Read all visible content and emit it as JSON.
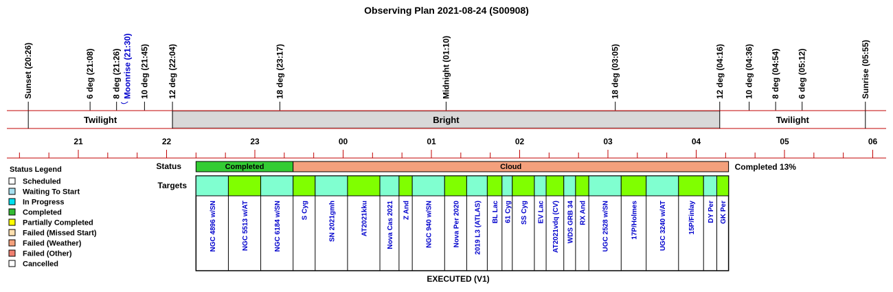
{
  "chart_data": {
    "type": "timeline",
    "title": "Observing Plan 2021-08-24 (S00908)",
    "events": [
      {
        "label": "Sunset (20:26)",
        "time": "20:26",
        "kind": "sun"
      },
      {
        "label": "6 deg (21:08)",
        "time": "21:08",
        "kind": "twilight"
      },
      {
        "label": "8 deg (21:26)",
        "time": "21:26",
        "kind": "twilight"
      },
      {
        "label": "Moonrise (21:30)",
        "time": "21:30",
        "kind": "moon"
      },
      {
        "label": "10 deg (21:45)",
        "time": "21:45",
        "kind": "twilight"
      },
      {
        "label": "12 deg (22:04)",
        "time": "22:04",
        "kind": "twilight"
      },
      {
        "label": "18 deg (23:17)",
        "time": "23:17",
        "kind": "twilight"
      },
      {
        "label": "Midnight (01:10)",
        "time": "25:10",
        "kind": "midnight"
      },
      {
        "label": "18 deg (03:05)",
        "time": "27:05",
        "kind": "twilight"
      },
      {
        "label": "12 deg (04:16)",
        "time": "28:16",
        "kind": "twilight"
      },
      {
        "label": "10 deg (04:36)",
        "time": "28:36",
        "kind": "twilight"
      },
      {
        "label": "8 deg (04:54)",
        "time": "28:54",
        "kind": "twilight"
      },
      {
        "label": "6 deg (05:12)",
        "time": "29:12",
        "kind": "twilight"
      },
      {
        "label": "Sunrise (05:55)",
        "time": "29:55",
        "kind": "sun"
      }
    ],
    "bands": [
      {
        "label": "Twilight",
        "start": "20:26",
        "end": "22:04",
        "color": "#ffffff"
      },
      {
        "label": "Bright",
        "start": "22:04",
        "end": "28:16",
        "color": "#d8d8d8"
      },
      {
        "label": "Twilight",
        "start": "28:16",
        "end": "29:55",
        "color": "#ffffff"
      }
    ],
    "hour_ticks": [
      "21",
      "22",
      "23",
      "00",
      "01",
      "02",
      "03",
      "04",
      "05",
      "06"
    ],
    "row_labels": {
      "status": "Status",
      "targets": "Targets"
    },
    "status": [
      {
        "label": "Completed",
        "start": "22:20",
        "end": "23:26",
        "color": "#33cc33"
      },
      {
        "label": "Cloud",
        "start": "23:26",
        "end": "28:22",
        "color": "#f4a07c"
      }
    ],
    "completion": "Completed 13%",
    "targets": [
      {
        "name": "NGC 4896 w/SN",
        "start": "22:20",
        "end": "22:42",
        "color": "#80ffd0"
      },
      {
        "name": "NGC 5513 w/AT",
        "start": "22:42",
        "end": "23:04",
        "color": "#80ff00"
      },
      {
        "name": "NGC 6184 w/SN",
        "start": "23:04",
        "end": "23:26",
        "color": "#80ffd0"
      },
      {
        "name": "S Cyg",
        "start": "23:26",
        "end": "23:41",
        "color": "#80ff00"
      },
      {
        "name": "SN 2021gmh",
        "start": "23:41",
        "end": "24:03",
        "color": "#80ffd0"
      },
      {
        "name": "AT2021kku",
        "start": "24:03",
        "end": "24:25",
        "color": "#80ff00"
      },
      {
        "name": "Nova Cas 2021",
        "start": "24:25",
        "end": "24:38",
        "color": "#80ffd0"
      },
      {
        "name": "Z And",
        "start": "24:38",
        "end": "24:47",
        "color": "#80ff00"
      },
      {
        "name": "NGC 940 w/SN",
        "start": "24:47",
        "end": "25:09",
        "color": "#80ffd0"
      },
      {
        "name": "Nova Per 2020",
        "start": "25:09",
        "end": "25:24",
        "color": "#80ff00"
      },
      {
        "name": "2019 L3 (ATLAS)",
        "start": "25:24",
        "end": "25:38",
        "color": "#80ffd0"
      },
      {
        "name": "BL Lac",
        "start": "25:38",
        "end": "25:48",
        "color": "#80ff00"
      },
      {
        "name": "61 Cyg",
        "start": "25:48",
        "end": "25:55",
        "color": "#80ffd0"
      },
      {
        "name": "SS Cyg",
        "start": "25:55",
        "end": "26:10",
        "color": "#80ff00"
      },
      {
        "name": "EV Lac",
        "start": "26:10",
        "end": "26:18",
        "color": "#80ffd0"
      },
      {
        "name": "AT2021vdq (CV)",
        "start": "26:18",
        "end": "26:30",
        "color": "#80ff00"
      },
      {
        "name": "WDS GRB 34",
        "start": "26:30",
        "end": "26:38",
        "color": "#80ffd0"
      },
      {
        "name": "RX And",
        "start": "26:38",
        "end": "26:47",
        "color": "#80ff00"
      },
      {
        "name": "UGC 2528 w/SN",
        "start": "26:47",
        "end": "27:09",
        "color": "#80ffd0"
      },
      {
        "name": "17P/Holmes",
        "start": "27:09",
        "end": "27:26",
        "color": "#80ff00"
      },
      {
        "name": "UGC 3240 w/AT",
        "start": "27:26",
        "end": "27:48",
        "color": "#80ffd0"
      },
      {
        "name": "15P/Finlay",
        "start": "27:48",
        "end": "28:05",
        "color": "#80ff00"
      },
      {
        "name": "DY Per",
        "start": "28:05",
        "end": "28:14",
        "color": "#80ffd0"
      },
      {
        "name": "GK Per",
        "start": "28:14",
        "end": "28:22",
        "color": "#80ff00"
      }
    ],
    "footer": "EXECUTED (V1)",
    "legend": {
      "title": "Status Legend",
      "items": [
        {
          "label": "Scheduled",
          "color": "#ffffff"
        },
        {
          "label": "Waiting To Start",
          "color": "#a8e0f0"
        },
        {
          "label": "In Progress",
          "color": "#00e0f0"
        },
        {
          "label": "Completed",
          "color": "#33bb33"
        },
        {
          "label": "Partially Completed",
          "color": "#ffff00"
        },
        {
          "label": "Failed (Missed Start)",
          "color": "#ffe0b0"
        },
        {
          "label": "Failed (Weather)",
          "color": "#f4a07c"
        },
        {
          "label": "Failed (Other)",
          "color": "#f08070"
        },
        {
          "label": "Cancelled",
          "color": "#ffffff"
        }
      ]
    },
    "colors": {
      "line": "#c00000",
      "event_text": "#000000",
      "moon_text": "#0000cc",
      "target_text": "#0000cc"
    }
  }
}
